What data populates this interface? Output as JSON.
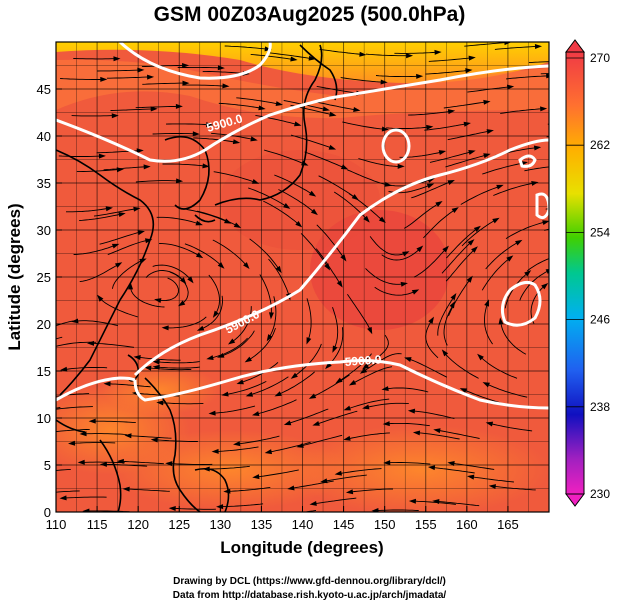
{
  "title": "GSM 00Z03Aug2025 (500.0hPa)",
  "xlabel": "Longitude (degrees)",
  "ylabel": "Latitude  (degrees)",
  "x_ticks": [
    "110",
    "115",
    "120",
    "125",
    "130",
    "135",
    "140",
    "145",
    "150",
    "155",
    "160",
    "165"
  ],
  "y_ticks": [
    "0",
    "5",
    "10",
    "15",
    "20",
    "25",
    "30",
    "35",
    "40",
    "45"
  ],
  "colorbar_labels": [
    "270",
    "262",
    "254",
    "246",
    "238",
    "230"
  ],
  "contour_labels": [
    "5900.0",
    "5900.0",
    "5900.0"
  ],
  "credits": {
    "line1": "Drawing by DCL (https://www.gfd-dennou.org/library/dcl/)",
    "line2": "Data from http://database.rish.kyoto-u.ac.jp/arch/jmadata/"
  },
  "colors": {
    "field_main": "#f06040",
    "field_warm": "#ff8a2a",
    "field_yellow": "#ffd000",
    "contour": "#ffffff",
    "streamline": "#000000"
  },
  "chart_data": {
    "type": "heatmap",
    "xlim": [
      110,
      170
    ],
    "ylim": [
      0,
      50
    ],
    "colorbar_range": [
      230,
      270
    ],
    "contour_level": 5900.0,
    "streamlines": true,
    "grid": true
  }
}
